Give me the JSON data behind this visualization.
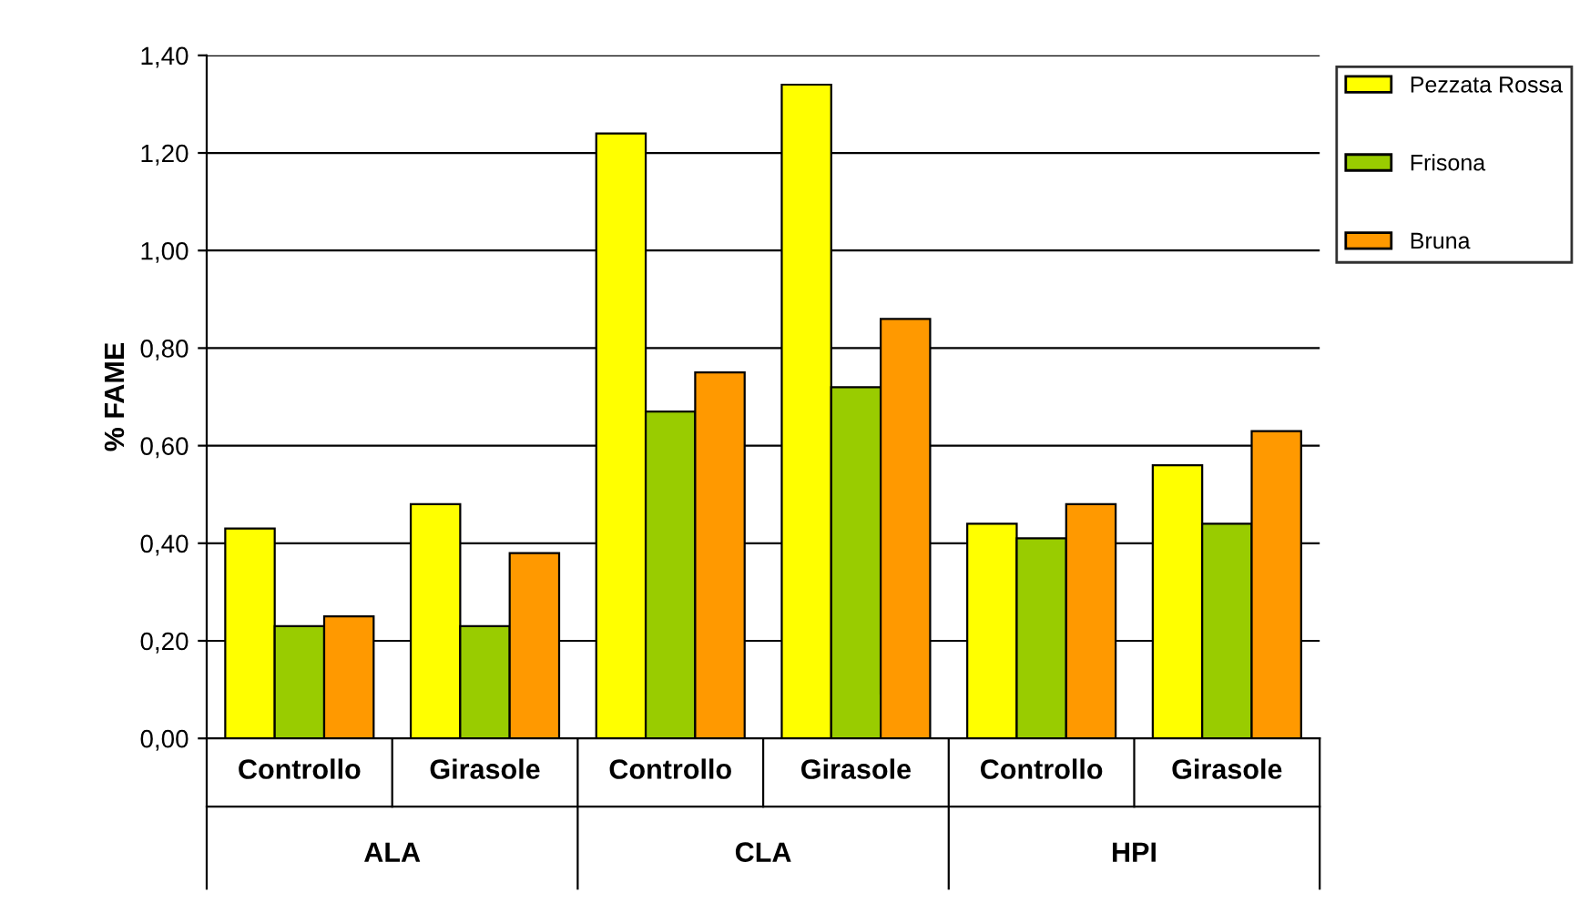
{
  "chart_data": {
    "type": "bar",
    "ylabel": "% FAME",
    "categories": [
      "Controllo",
      "Girasole",
      "Controllo",
      "Girasole",
      "Controllo",
      "Girasole"
    ],
    "annotations": [
      "ALA",
      "CLA",
      "HPI"
    ],
    "series": [
      {
        "name": "Pezzata Rossa",
        "color": "#ffff00",
        "values": [
          0.43,
          0.48,
          1.24,
          1.34,
          0.44,
          0.56
        ]
      },
      {
        "name": "Frisona",
        "color": "#99cc00",
        "values": [
          0.23,
          0.23,
          0.67,
          0.72,
          0.41,
          0.44
        ]
      },
      {
        "name": "Bruna",
        "color": "#ff9900",
        "values": [
          0.25,
          0.38,
          0.75,
          0.86,
          0.48,
          0.63
        ]
      }
    ],
    "ylim": [
      0,
      1.4
    ],
    "yticks": [
      {
        "value": 0,
        "label": "0,00"
      },
      {
        "value": 0.2,
        "label": "0,20"
      },
      {
        "value": 0.4,
        "label": "0,40"
      },
      {
        "value": 0.6,
        "label": "0,60"
      },
      {
        "value": 0.8,
        "label": "0,80"
      },
      {
        "value": 1.0,
        "label": "1,00"
      },
      {
        "value": 1.2,
        "label": "1,20"
      },
      {
        "value": 1.4,
        "label": "1,40"
      }
    ],
    "grid": "y",
    "legend": "top right"
  }
}
